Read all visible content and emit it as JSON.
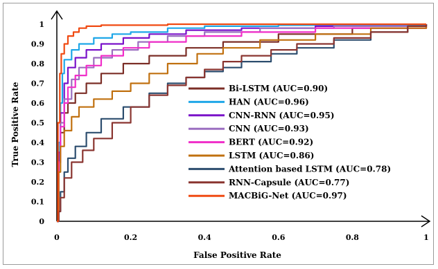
{
  "chart_data": {
    "type": "line",
    "title": "",
    "xlabel": "False Positive Rate",
    "ylabel": "True Positive Rate",
    "xlim": [
      0,
      1
    ],
    "ylim": [
      0,
      1
    ],
    "x_ticks": [
      "0",
      "0.2",
      "0.4",
      "0.6",
      "0.8",
      "1"
    ],
    "y_ticks": [
      "0",
      "0.1",
      "0.2",
      "0.3",
      "0.4",
      "0.5",
      "0.6",
      "0.7",
      "0.8",
      "0.9",
      "1"
    ],
    "grid": false,
    "legend_position": "center-right",
    "series": [
      {
        "name": "Bi-LSTM (AUC=0.90)",
        "color": "#7b2d26",
        "points": [
          [
            0,
            0
          ],
          [
            0.005,
            0.3
          ],
          [
            0.01,
            0.45
          ],
          [
            0.02,
            0.55
          ],
          [
            0.03,
            0.6
          ],
          [
            0.05,
            0.65
          ],
          [
            0.08,
            0.7
          ],
          [
            0.12,
            0.75
          ],
          [
            0.18,
            0.8
          ],
          [
            0.25,
            0.84
          ],
          [
            0.35,
            0.88
          ],
          [
            0.45,
            0.91
          ],
          [
            0.6,
            0.95
          ],
          [
            0.8,
            0.98
          ],
          [
            1,
            1
          ]
        ]
      },
      {
        "name": "HAN (AUC=0.96)",
        "color": "#1fa7e8",
        "points": [
          [
            0,
            0
          ],
          [
            0.005,
            0.4
          ],
          [
            0.01,
            0.6
          ],
          [
            0.015,
            0.75
          ],
          [
            0.02,
            0.82
          ],
          [
            0.04,
            0.87
          ],
          [
            0.06,
            0.9
          ],
          [
            0.1,
            0.93
          ],
          [
            0.15,
            0.95
          ],
          [
            0.2,
            0.96
          ],
          [
            0.3,
            0.98
          ],
          [
            0.4,
            0.99
          ],
          [
            0.6,
            0.995
          ],
          [
            1,
            1
          ]
        ]
      },
      {
        "name": "CNN-RNN (AUC=0.95)",
        "color": "#7a12c9",
        "points": [
          [
            0,
            0
          ],
          [
            0.005,
            0.35
          ],
          [
            0.01,
            0.55
          ],
          [
            0.02,
            0.7
          ],
          [
            0.03,
            0.78
          ],
          [
            0.05,
            0.83
          ],
          [
            0.08,
            0.87
          ],
          [
            0.12,
            0.9
          ],
          [
            0.18,
            0.93
          ],
          [
            0.25,
            0.95
          ],
          [
            0.35,
            0.97
          ],
          [
            0.5,
            0.98
          ],
          [
            0.7,
            0.99
          ],
          [
            1,
            1
          ]
        ]
      },
      {
        "name": "CNN (AUC=0.93)",
        "color": "#9b6fc0",
        "points": [
          [
            0,
            0
          ],
          [
            0.005,
            0.3
          ],
          [
            0.01,
            0.5
          ],
          [
            0.02,
            0.62
          ],
          [
            0.04,
            0.72
          ],
          [
            0.06,
            0.78
          ],
          [
            0.1,
            0.83
          ],
          [
            0.15,
            0.87
          ],
          [
            0.22,
            0.91
          ],
          [
            0.3,
            0.94
          ],
          [
            0.4,
            0.96
          ],
          [
            0.55,
            0.98
          ],
          [
            0.75,
            0.99
          ],
          [
            1,
            1
          ]
        ]
      },
      {
        "name": "BERT (AUC=0.92)",
        "color": "#f02ec8",
        "points": [
          [
            0,
            0
          ],
          [
            0.005,
            0.3
          ],
          [
            0.01,
            0.48
          ],
          [
            0.02,
            0.6
          ],
          [
            0.03,
            0.68
          ],
          [
            0.05,
            0.74
          ],
          [
            0.08,
            0.79
          ],
          [
            0.12,
            0.84
          ],
          [
            0.18,
            0.88
          ],
          [
            0.25,
            0.91
          ],
          [
            0.35,
            0.94
          ],
          [
            0.5,
            0.96
          ],
          [
            0.7,
            0.98
          ],
          [
            1,
            1
          ]
        ]
      },
      {
        "name": "LSTM (AUC=0.86)",
        "color": "#c0700f",
        "points": [
          [
            0,
            0
          ],
          [
            0.005,
            0.25
          ],
          [
            0.01,
            0.38
          ],
          [
            0.02,
            0.46
          ],
          [
            0.04,
            0.53
          ],
          [
            0.06,
            0.58
          ],
          [
            0.1,
            0.62
          ],
          [
            0.15,
            0.66
          ],
          [
            0.2,
            0.7
          ],
          [
            0.25,
            0.75
          ],
          [
            0.3,
            0.8
          ],
          [
            0.38,
            0.85
          ],
          [
            0.45,
            0.88
          ],
          [
            0.55,
            0.92
          ],
          [
            0.7,
            0.95
          ],
          [
            0.85,
            0.98
          ],
          [
            1,
            1
          ]
        ]
      },
      {
        "name": "Attention based LSTM (AUC=0.78)",
        "color": "#2c4d6e",
        "points": [
          [
            0,
            0
          ],
          [
            0.005,
            0.05
          ],
          [
            0.01,
            0.15
          ],
          [
            0.02,
            0.25
          ],
          [
            0.03,
            0.32
          ],
          [
            0.05,
            0.38
          ],
          [
            0.08,
            0.45
          ],
          [
            0.12,
            0.52
          ],
          [
            0.18,
            0.58
          ],
          [
            0.25,
            0.65
          ],
          [
            0.3,
            0.7
          ],
          [
            0.35,
            0.73
          ],
          [
            0.4,
            0.76
          ],
          [
            0.45,
            0.78
          ],
          [
            0.5,
            0.81
          ],
          [
            0.58,
            0.85
          ],
          [
            0.65,
            0.88
          ],
          [
            0.75,
            0.92
          ],
          [
            0.85,
            0.96
          ],
          [
            0.95,
            0.99
          ],
          [
            1,
            1
          ]
        ]
      },
      {
        "name": "RNN-Capsule (AUC=0.77)",
        "color": "#8a3530",
        "points": [
          [
            0,
            0
          ],
          [
            0.005,
            0.05
          ],
          [
            0.01,
            0.12
          ],
          [
            0.02,
            0.22
          ],
          [
            0.04,
            0.3
          ],
          [
            0.07,
            0.36
          ],
          [
            0.1,
            0.42
          ],
          [
            0.15,
            0.5
          ],
          [
            0.2,
            0.58
          ],
          [
            0.25,
            0.64
          ],
          [
            0.3,
            0.69
          ],
          [
            0.35,
            0.73
          ],
          [
            0.4,
            0.77
          ],
          [
            0.45,
            0.81
          ],
          [
            0.5,
            0.84
          ],
          [
            0.58,
            0.87
          ],
          [
            0.65,
            0.9
          ],
          [
            0.75,
            0.93
          ],
          [
            0.85,
            0.96
          ],
          [
            0.95,
            0.99
          ],
          [
            1,
            1
          ]
        ]
      },
      {
        "name": "MACBiG-Net (AUC=0.97)",
        "color": "#f04a12",
        "points": [
          [
            0,
            0
          ],
          [
            0.003,
            0.5
          ],
          [
            0.008,
            0.75
          ],
          [
            0.012,
            0.85
          ],
          [
            0.02,
            0.9
          ],
          [
            0.03,
            0.94
          ],
          [
            0.045,
            0.96
          ],
          [
            0.06,
            0.98
          ],
          [
            0.08,
            0.99
          ],
          [
            0.12,
            0.995
          ],
          [
            0.3,
            1
          ],
          [
            1,
            1
          ]
        ]
      }
    ]
  }
}
